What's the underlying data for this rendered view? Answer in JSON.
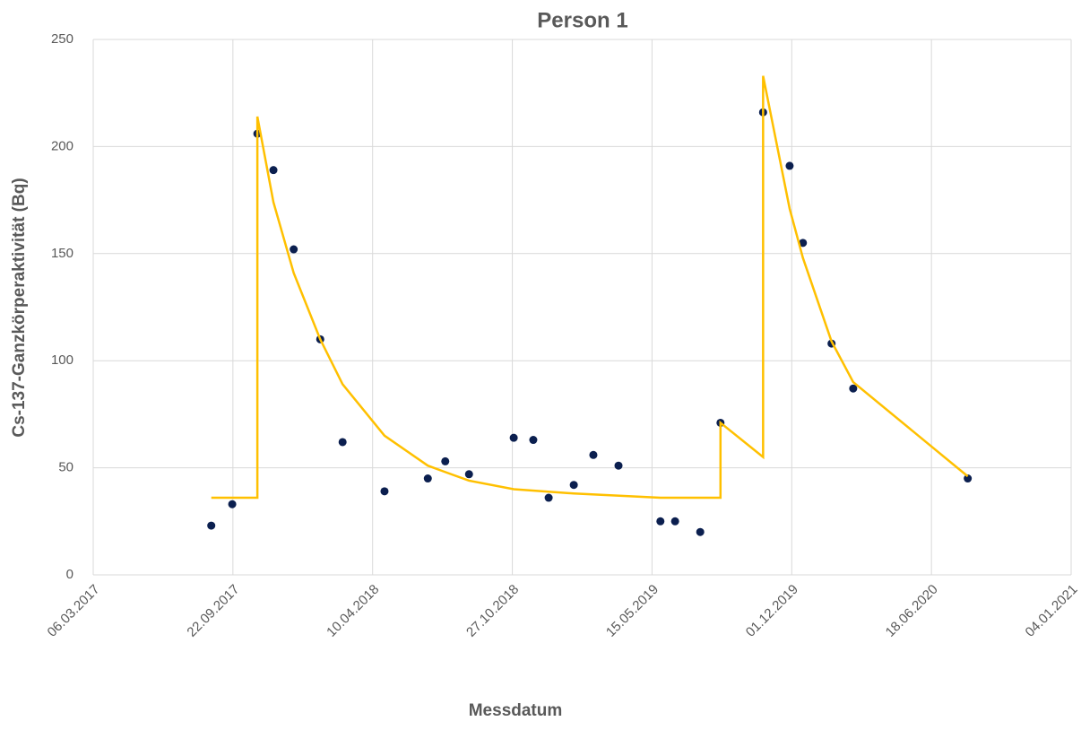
{
  "chart_data": {
    "type": "scatter",
    "title": "Person 1",
    "x_label": "Messdatum",
    "y_label": "Cs-137-Ganzkörperaktivität (Bq)",
    "xlim": [
      "06.03.2017",
      "04.01.2021"
    ],
    "xticks": [
      "06.03.2017",
      "22.09.2017",
      "10.04.2018",
      "27.10.2018",
      "15.05.2019",
      "01.12.2019",
      "18.06.2020",
      "04.01.2021"
    ],
    "ylim": [
      0,
      250
    ],
    "yticks": [
      0,
      50,
      100,
      150,
      200,
      250
    ],
    "grid": true,
    "series": [
      {
        "type": "scatter",
        "color": "#0b1f4f",
        "x": [
          "22.08.2017",
          "21.09.2017",
          "27.10.2017",
          "19.11.2017",
          "18.12.2017",
          "25.01.2018",
          "26.02.2018",
          "27.04.2018",
          "28.06.2018",
          "23.07.2018",
          "26.08.2018",
          "29.10.2018",
          "26.11.2018",
          "18.12.2018",
          "23.01.2019",
          "20.02.2019",
          "28.03.2019",
          "27.05.2019",
          "17.06.2019",
          "23.07.2019",
          "21.08.2019",
          "21.10.2019",
          "28.11.2019",
          "17.12.2019",
          "27.01.2020",
          "27.02.2020",
          "09.08.2020"
        ],
        "values": [
          23,
          33,
          206,
          189,
          152,
          110,
          62,
          39,
          45,
          53,
          47,
          64,
          63,
          36,
          42,
          56,
          51,
          25,
          25,
          20,
          71,
          216,
          191,
          155,
          108,
          87,
          45
        ]
      },
      {
        "type": "line",
        "color": "#ffc000",
        "x": [
          "22.08.2017",
          "27.10.2017",
          "27.10.2017",
          "19.11.2017",
          "18.12.2017",
          "25.01.2018",
          "26.02.2018",
          "27.04.2018",
          "28.06.2018",
          "23.07.2018",
          "26.08.2018",
          "29.10.2018",
          "23.01.2019",
          "27.05.2019",
          "21.08.2019",
          "21.08.2019",
          "21.10.2019",
          "21.10.2019",
          "28.11.2019",
          "17.12.2019",
          "27.01.2020",
          "27.02.2020",
          "09.08.2020"
        ],
        "values": [
          36,
          36,
          214,
          174,
          141,
          110,
          89,
          65,
          51,
          48,
          44,
          40,
          38,
          36,
          36,
          71,
          55,
          233,
          171,
          148,
          109,
          90,
          46
        ]
      }
    ]
  }
}
